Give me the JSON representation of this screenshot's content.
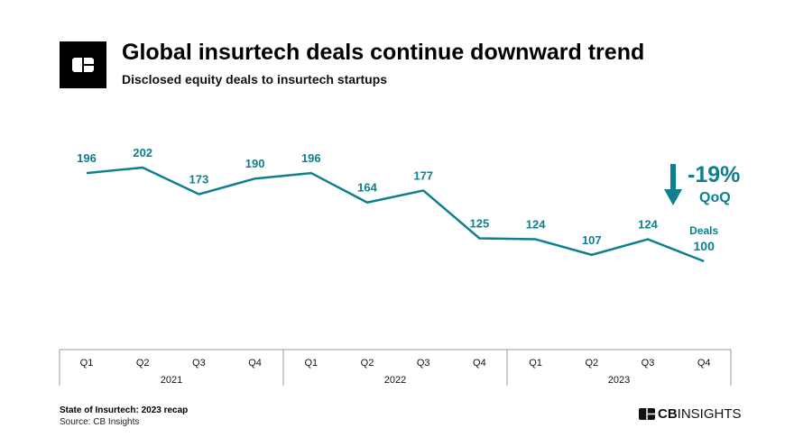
{
  "header": {
    "title": "Global insurtech deals continue downward trend",
    "subtitle": "Disclosed equity deals to insurtech startups"
  },
  "chart_data": {
    "type": "line",
    "categories": [
      "Q1",
      "Q2",
      "Q3",
      "Q4",
      "Q1",
      "Q2",
      "Q3",
      "Q4",
      "Q1",
      "Q2",
      "Q3",
      "Q4"
    ],
    "years": [
      "2021",
      "2022",
      "2023"
    ],
    "values": [
      196,
      202,
      173,
      190,
      196,
      164,
      177,
      125,
      124,
      107,
      124,
      100
    ],
    "series_label": "Deals",
    "annotation": {
      "change": "-19%",
      "period": "QoQ"
    },
    "color": "#0e7f8e"
  },
  "footer": {
    "report": "State of Insurtech: 2023 recap",
    "source": "Source: CB Insights",
    "brand_bold": "CB",
    "brand_rest": "INSIGHTS"
  }
}
